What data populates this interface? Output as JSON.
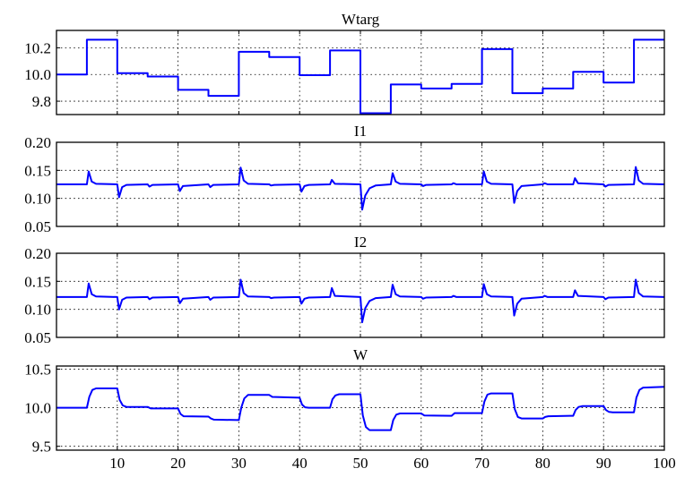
{
  "figure": {
    "background": "#ffffff",
    "line_color": "#0000ff"
  },
  "chart_data": [
    {
      "type": "line",
      "title": "Wtarg",
      "xlabel": "",
      "ylabel": "",
      "xlim": [
        0,
        100
      ],
      "ylim": [
        9.7,
        10.33
      ],
      "grid": true,
      "yticks": [
        9.8,
        10.0,
        10.2
      ],
      "ytick_labels": [
        "9.8",
        "10.0",
        "10.2"
      ],
      "xticks": [
        10,
        20,
        30,
        40,
        50,
        60,
        70,
        80,
        90,
        100
      ],
      "xtick_labels": [],
      "series": [
        {
          "x": [
            0,
            5,
            5,
            10,
            10,
            15,
            15,
            20,
            20,
            25,
            25,
            30,
            30,
            35,
            35,
            40,
            40,
            45,
            45,
            50,
            50,
            55,
            55,
            60,
            60,
            65,
            65,
            70,
            70,
            75,
            75,
            80,
            80,
            85,
            85,
            90,
            90,
            95,
            95,
            100
          ],
          "y": [
            10.0,
            10.0,
            10.26,
            10.26,
            10.01,
            10.01,
            9.985,
            9.985,
            9.885,
            9.885,
            9.84,
            9.84,
            10.17,
            10.17,
            10.13,
            10.13,
            9.995,
            9.995,
            10.18,
            10.18,
            9.71,
            9.71,
            9.925,
            9.925,
            9.895,
            9.895,
            9.93,
            9.93,
            10.19,
            10.19,
            9.86,
            9.86,
            9.895,
            9.895,
            10.02,
            10.02,
            9.94,
            9.94,
            10.26,
            10.26
          ]
        }
      ]
    },
    {
      "type": "line",
      "title": "I1",
      "xlabel": "",
      "ylabel": "",
      "xlim": [
        0,
        100
      ],
      "ylim": [
        0.05,
        0.2
      ],
      "grid": true,
      "yticks": [
        0.05,
        0.1,
        0.15,
        0.2
      ],
      "ytick_labels": [
        "0.05",
        "0.10",
        "0.15",
        "0.20"
      ],
      "xticks": [
        10,
        20,
        30,
        40,
        50,
        60,
        70,
        80,
        90,
        100
      ],
      "xtick_labels": [],
      "series": [
        {
          "x": [
            0,
            5,
            5.3,
            5.8,
            6.5,
            10,
            10.3,
            10.8,
            11.5,
            15,
            15.3,
            15.8,
            20,
            20.3,
            20.8,
            25,
            25.3,
            25.8,
            30,
            30.3,
            30.8,
            31.5,
            35,
            35.3,
            35.8,
            40,
            40.3,
            40.8,
            41.5,
            45,
            45.3,
            45.8,
            50,
            50.3,
            50.8,
            51.5,
            52.5,
            55,
            55.3,
            55.8,
            56.5,
            60,
            60.3,
            60.8,
            65,
            65.3,
            65.8,
            70,
            70.3,
            70.8,
            71.5,
            75,
            75.3,
            75.8,
            76.5,
            80,
            80.3,
            80.8,
            85,
            85.3,
            85.8,
            90,
            90.3,
            90.8,
            95,
            95.3,
            95.8,
            96.5,
            100
          ],
          "y": [
            0.125,
            0.125,
            0.148,
            0.13,
            0.126,
            0.125,
            0.102,
            0.12,
            0.124,
            0.125,
            0.121,
            0.124,
            0.125,
            0.113,
            0.122,
            0.125,
            0.12,
            0.124,
            0.125,
            0.155,
            0.132,
            0.126,
            0.125,
            0.123,
            0.124,
            0.125,
            0.112,
            0.122,
            0.124,
            0.125,
            0.133,
            0.126,
            0.125,
            0.08,
            0.105,
            0.118,
            0.123,
            0.125,
            0.145,
            0.13,
            0.126,
            0.125,
            0.122,
            0.124,
            0.125,
            0.127,
            0.125,
            0.125,
            0.148,
            0.13,
            0.126,
            0.125,
            0.092,
            0.113,
            0.122,
            0.125,
            0.127,
            0.125,
            0.125,
            0.136,
            0.127,
            0.125,
            0.121,
            0.124,
            0.125,
            0.156,
            0.132,
            0.126,
            0.125
          ]
        }
      ]
    },
    {
      "type": "line",
      "title": "I2",
      "xlabel": "",
      "ylabel": "",
      "xlim": [
        0,
        100
      ],
      "ylim": [
        0.05,
        0.2
      ],
      "grid": true,
      "yticks": [
        0.05,
        0.1,
        0.15,
        0.2
      ],
      "ytick_labels": [
        "0.05",
        "0.10",
        "0.15",
        "0.20"
      ],
      "xticks": [
        10,
        20,
        30,
        40,
        50,
        60,
        70,
        80,
        90,
        100
      ],
      "xtick_labels": [],
      "series": [
        {
          "x": [
            0,
            5,
            5.3,
            5.8,
            6.5,
            10,
            10.3,
            10.8,
            11.5,
            15,
            15.3,
            15.8,
            20,
            20.3,
            20.8,
            25,
            25.3,
            25.8,
            30,
            30.3,
            30.8,
            31.5,
            35,
            35.3,
            35.8,
            40,
            40.3,
            40.8,
            41.5,
            45,
            45.3,
            45.8,
            50,
            50.3,
            50.8,
            51.5,
            52.5,
            55,
            55.3,
            55.8,
            56.5,
            60,
            60.3,
            60.8,
            65,
            65.3,
            65.8,
            70,
            70.3,
            70.8,
            71.5,
            75,
            75.3,
            75.8,
            76.5,
            80,
            80.3,
            80.8,
            85,
            85.3,
            85.8,
            90,
            90.3,
            90.8,
            95,
            95.3,
            95.8,
            96.5,
            100
          ],
          "y": [
            0.122,
            0.122,
            0.146,
            0.127,
            0.123,
            0.122,
            0.1,
            0.117,
            0.121,
            0.122,
            0.118,
            0.121,
            0.122,
            0.111,
            0.119,
            0.122,
            0.117,
            0.121,
            0.122,
            0.153,
            0.129,
            0.123,
            0.122,
            0.12,
            0.121,
            0.122,
            0.11,
            0.119,
            0.121,
            0.122,
            0.138,
            0.124,
            0.122,
            0.077,
            0.102,
            0.115,
            0.12,
            0.122,
            0.144,
            0.127,
            0.123,
            0.122,
            0.119,
            0.121,
            0.122,
            0.124,
            0.122,
            0.122,
            0.145,
            0.127,
            0.123,
            0.122,
            0.089,
            0.11,
            0.119,
            0.122,
            0.124,
            0.122,
            0.122,
            0.134,
            0.124,
            0.122,
            0.118,
            0.121,
            0.122,
            0.153,
            0.129,
            0.123,
            0.122
          ]
        }
      ]
    },
    {
      "type": "line",
      "title": "W",
      "xlabel": "",
      "ylabel": "",
      "xlim": [
        0,
        100
      ],
      "ylim": [
        9.45,
        10.54
      ],
      "grid": true,
      "yticks": [
        9.5,
        10.0,
        10.5
      ],
      "ytick_labels": [
        "9.5",
        "10.0",
        "10.5"
      ],
      "xticks": [
        10,
        20,
        30,
        40,
        50,
        60,
        70,
        80,
        90,
        100
      ],
      "xtick_labels": [
        "10",
        "20",
        "30",
        "40",
        "50",
        "60",
        "70",
        "80",
        "90",
        "100"
      ],
      "series": [
        {
          "x": [
            0,
            5,
            5.4,
            5.9,
            6.5,
            10,
            10.4,
            10.9,
            11.5,
            15,
            15.5,
            20,
            20.4,
            20.9,
            25,
            25.4,
            25.9,
            30,
            30.4,
            30.9,
            31.5,
            35,
            35.5,
            40,
            40.4,
            40.9,
            41.5,
            45,
            45.4,
            45.9,
            46.5,
            50,
            50.4,
            50.9,
            51.5,
            55,
            55.4,
            55.9,
            56.5,
            60,
            60.5,
            65,
            65.5,
            70,
            70.4,
            70.9,
            71.5,
            75,
            75.4,
            75.9,
            76.5,
            80,
            80.4,
            80.9,
            85,
            85.4,
            85.9,
            86.5,
            90,
            90.4,
            90.9,
            91.5,
            95,
            95.4,
            95.9,
            96.5,
            100
          ],
          "y": [
            10.0,
            10.0,
            10.14,
            10.23,
            10.25,
            10.25,
            10.1,
            10.03,
            10.01,
            10.01,
            9.99,
            9.99,
            9.92,
            9.89,
            9.885,
            9.86,
            9.845,
            9.84,
            10.0,
            10.12,
            10.165,
            10.165,
            10.14,
            10.13,
            10.04,
            10.005,
            10.0,
            10.0,
            10.11,
            10.16,
            10.175,
            10.175,
            9.9,
            9.75,
            9.71,
            9.71,
            9.84,
            9.91,
            9.925,
            9.925,
            9.9,
            9.895,
            9.93,
            9.93,
            10.08,
            10.17,
            10.185,
            10.185,
            9.98,
            9.88,
            9.86,
            9.86,
            9.88,
            9.89,
            9.895,
            9.97,
            10.01,
            10.02,
            10.02,
            9.97,
            9.945,
            9.94,
            9.94,
            10.13,
            10.23,
            10.26,
            10.27
          ]
        }
      ]
    }
  ]
}
